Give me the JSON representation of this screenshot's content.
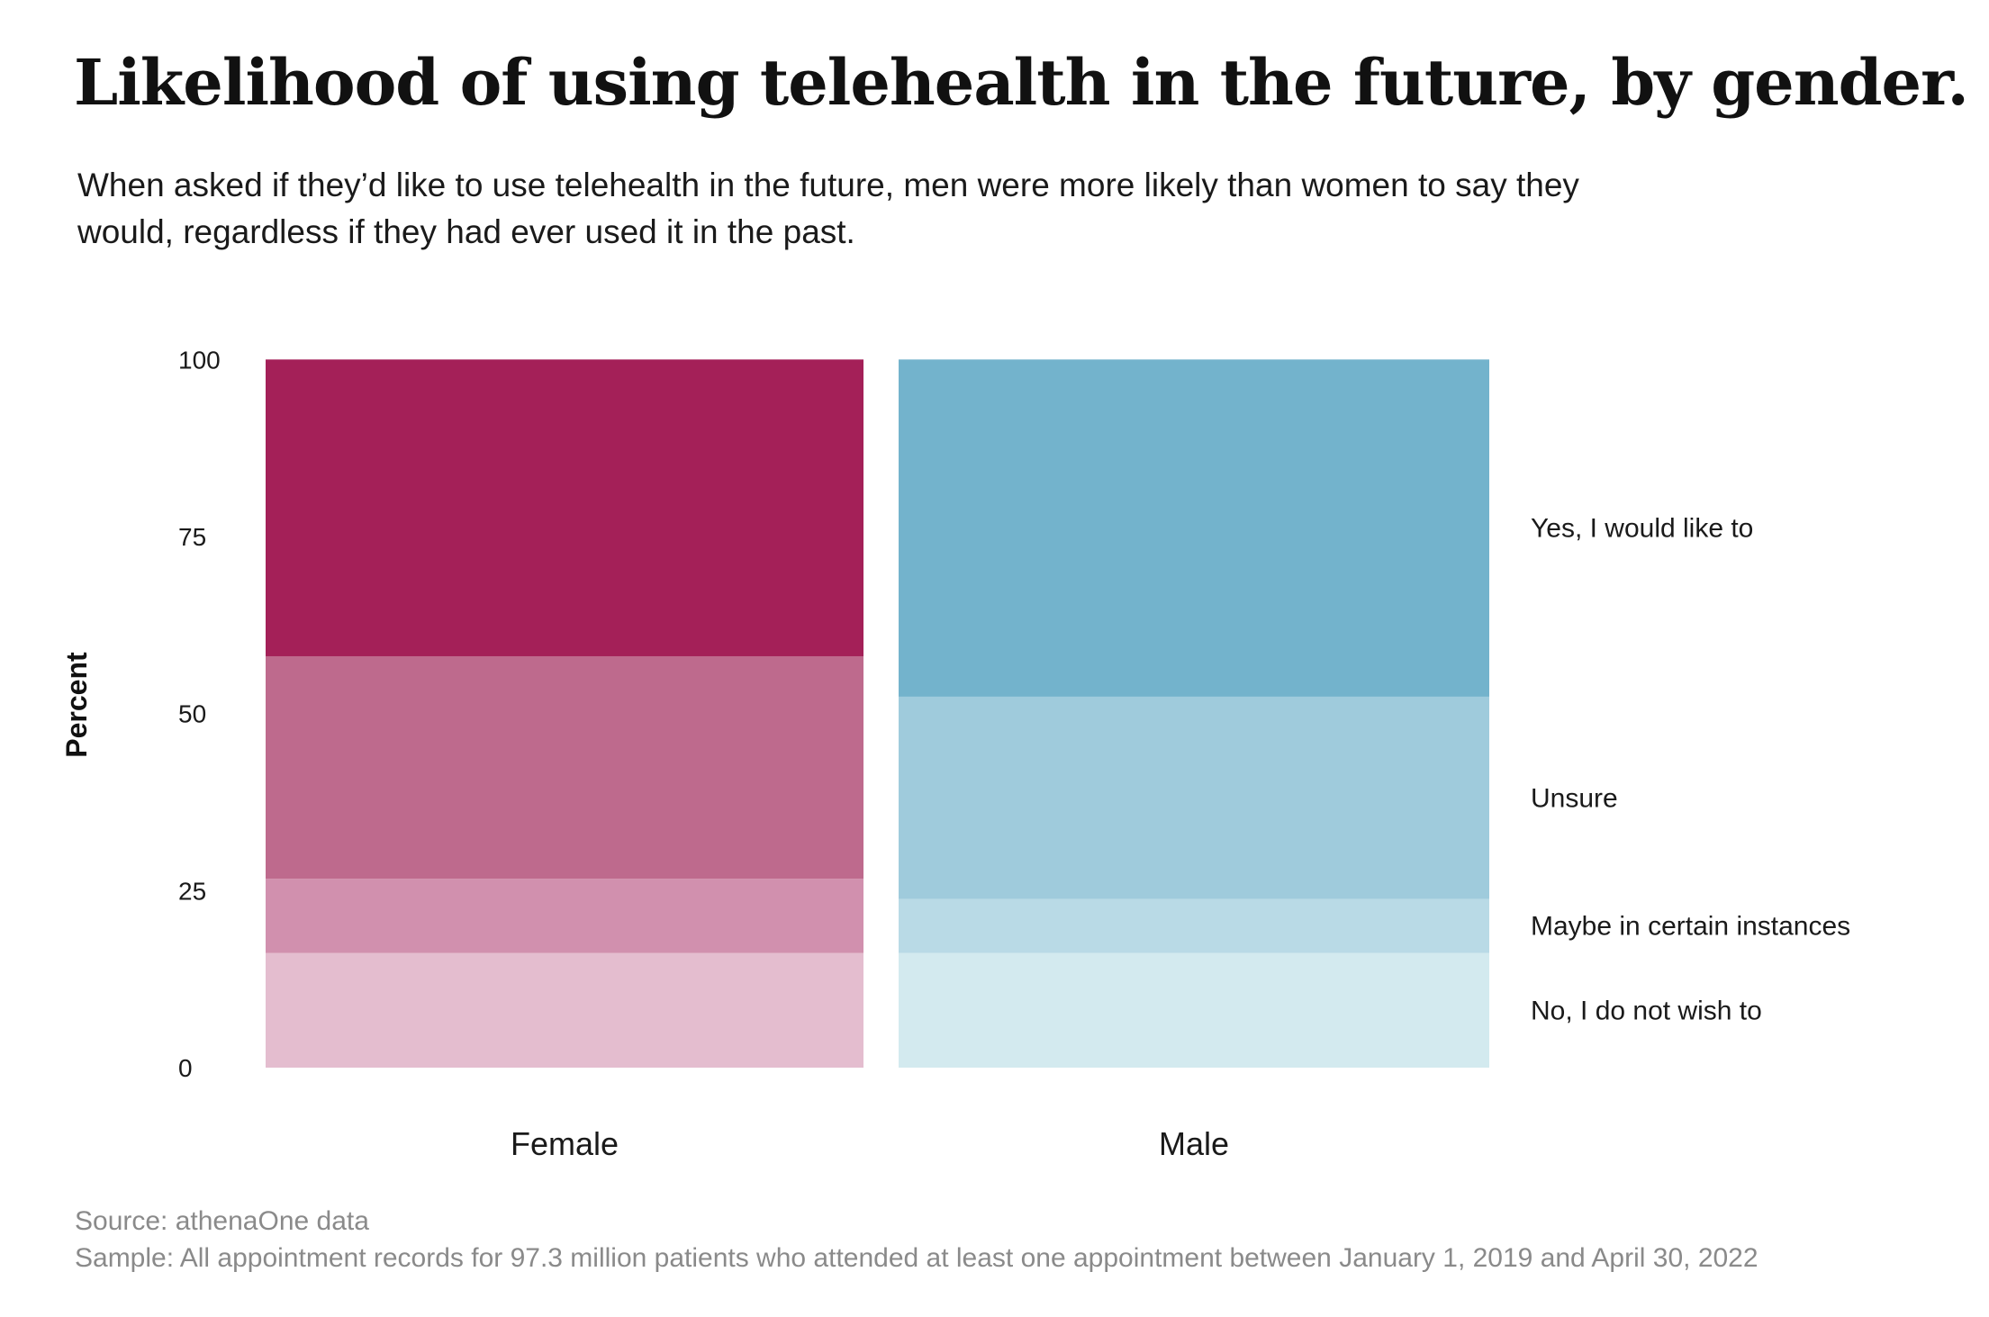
{
  "chart_data": {
    "type": "bar",
    "stacked": true,
    "normalized": true,
    "title": "Likelihood of using telehealth in the future, by gender.",
    "subtitle": "When asked if they’d like to use telehealth in the future, men were more likely than women to say they would, regardless if they had ever used it in the past.",
    "ylabel": "Percent",
    "xlabel": "",
    "ylim": [
      0,
      105
    ],
    "yticks": [
      0,
      25,
      50,
      75,
      100
    ],
    "categories": [
      "Female",
      "Male"
    ],
    "segment_order": [
      "No, I do not wish to",
      "Maybe in certain instances",
      "Unsure",
      "Yes, I would like to"
    ],
    "series": [
      {
        "name": "No, I do not wish to",
        "values": [
          17,
          17
        ],
        "colors": [
          "#e4bdcf",
          "#d3eaef"
        ]
      },
      {
        "name": "Maybe in certain instances",
        "values": [
          11,
          8
        ],
        "colors": [
          "#d190ae",
          "#b9dae6"
        ]
      },
      {
        "name": "Unsure",
        "values": [
          33,
          30
        ],
        "colors": [
          "#be6a8d",
          "#9fcbdc"
        ]
      },
      {
        "name": "Yes, I would like to",
        "values": [
          44,
          50
        ],
        "colors": [
          "#a42058",
          "#73b3cc"
        ]
      }
    ],
    "legend_labels": [
      "Yes, I would like to",
      "Unsure",
      "Maybe in certain instances",
      "No, I do not wish to"
    ],
    "legend_placement": "right"
  },
  "footer": {
    "source": "Source: athenaOne data",
    "sample": "Sample: All appointment records for 97.3 million patients who attended at least one appointment between January 1, 2019 and April 30, 2022"
  }
}
